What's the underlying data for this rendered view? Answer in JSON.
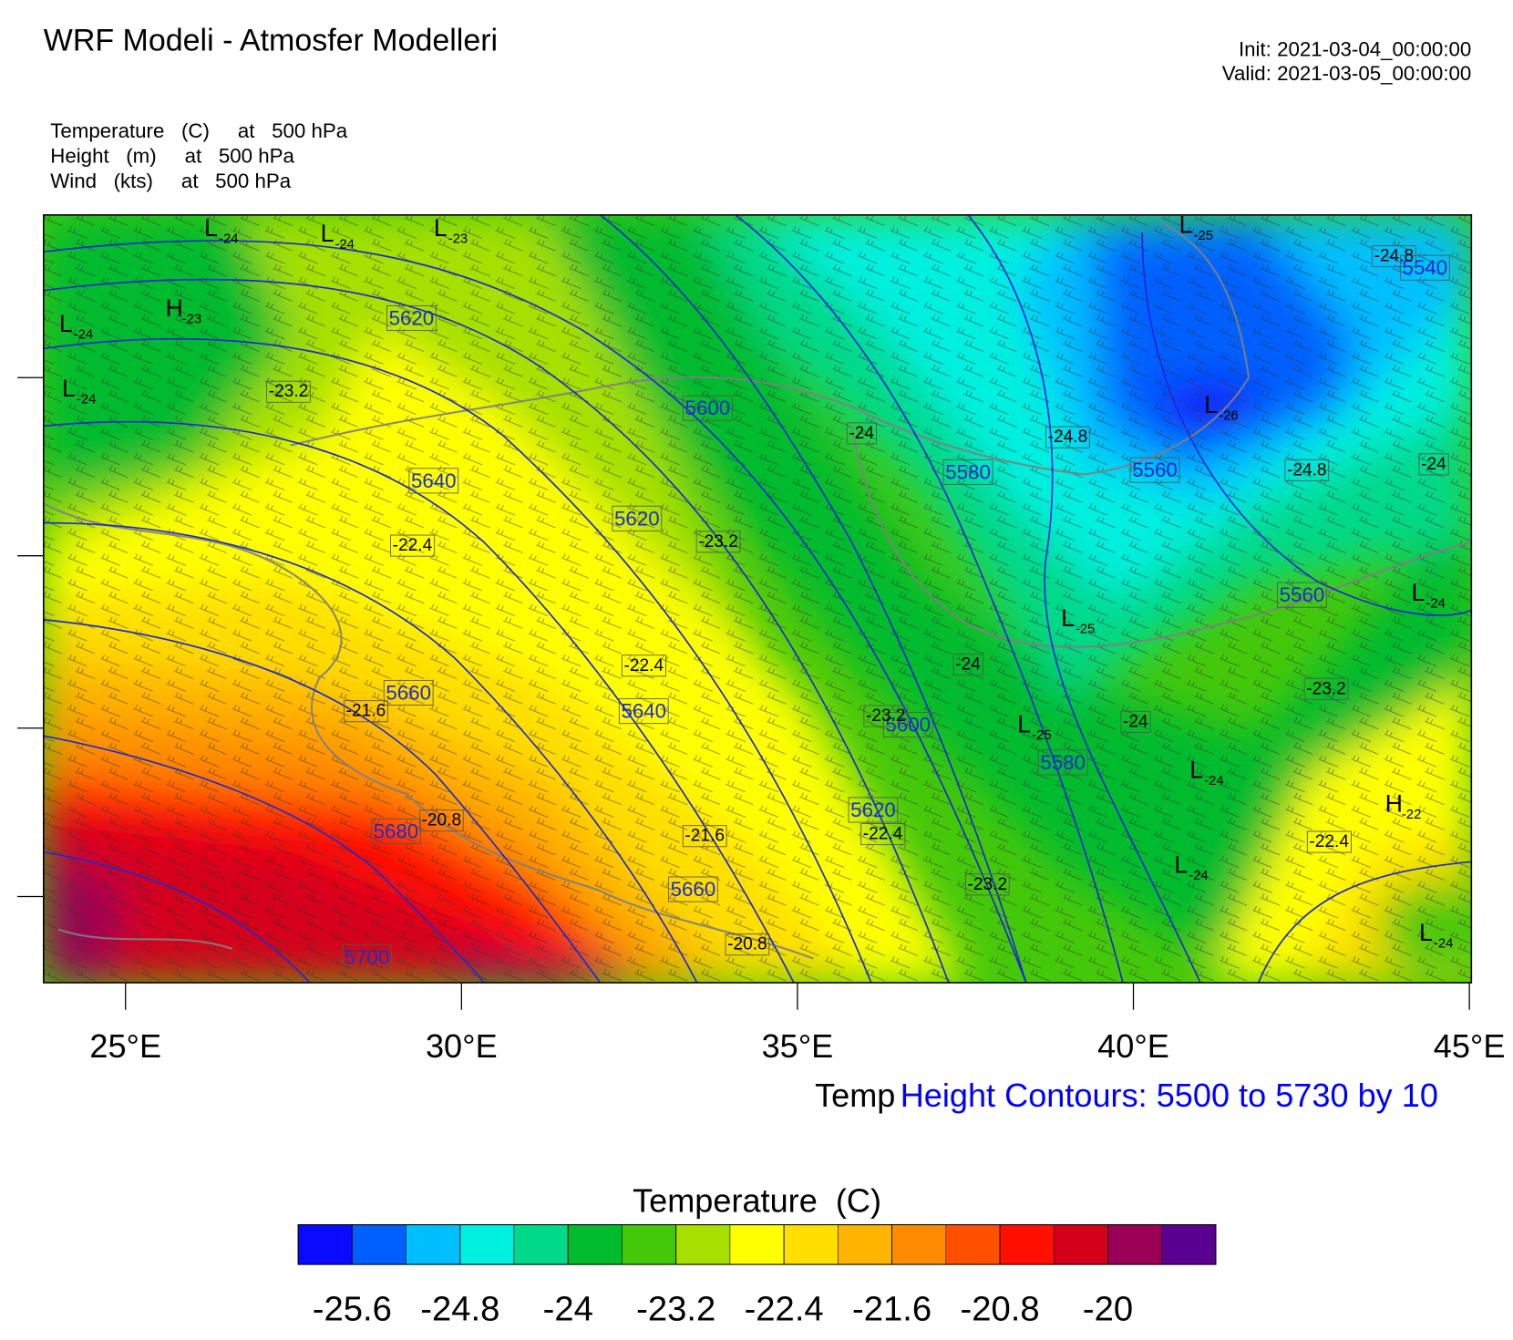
{
  "header": {
    "title": "WRF Modeli - Atmosfer Modelleri",
    "init": "Init: 2021-03-04_00:00:00",
    "valid": "Valid: 2021-03-05_00:00:00"
  },
  "fields": [
    "Temperature   (C)     at   500 hPa",
    "Height   (m)     at   500 hPa",
    "Wind   (kts)     at   500 hPa"
  ],
  "map": {
    "xlim": [
      23.78,
      45.03
    ],
    "xticks": [
      {
        "value": 25,
        "label": "25°E"
      },
      {
        "value": 30,
        "label": "30°E"
      },
      {
        "value": 35,
        "label": "35°E"
      },
      {
        "value": 40,
        "label": "40°E"
      },
      {
        "value": 45,
        "label": "45°E"
      }
    ],
    "height_labels": [
      "5620",
      "5600",
      "5640",
      "5620",
      "5580",
      "5560",
      "5540",
      "5560",
      "5660",
      "5640",
      "5600",
      "5580",
      "5620",
      "5680",
      "5660",
      "5700"
    ],
    "temp_labels": [
      "-23.2",
      "-24",
      "-24.8",
      "-24.8",
      "-24.8",
      "-24",
      "-22.4",
      "-23.2",
      "-22.4",
      "-24",
      "-23.2",
      "-24",
      "-23.2",
      "-21.6",
      "-20.8",
      "-21.6",
      "-22.4",
      "-23.2",
      "-22.4",
      "-20.8"
    ],
    "centers": [
      {
        "symbol": "L",
        "value": "-24"
      },
      {
        "symbol": "L",
        "value": "-24"
      },
      {
        "symbol": "L",
        "value": "-23"
      },
      {
        "symbol": "L",
        "value": "-25"
      },
      {
        "symbol": "L",
        "value": "-24"
      },
      {
        "symbol": "H",
        "value": "-23"
      },
      {
        "symbol": "L",
        "value": "-24"
      },
      {
        "symbol": "L",
        "value": "-26"
      },
      {
        "symbol": "L",
        "value": "-25"
      },
      {
        "symbol": "L",
        "value": "-24"
      },
      {
        "symbol": "L",
        "value": "-25"
      },
      {
        "symbol": "L",
        "value": "-24"
      },
      {
        "symbol": "H",
        "value": "-22"
      },
      {
        "symbol": "L",
        "value": "-24"
      },
      {
        "symbol": "L",
        "value": "-24"
      }
    ]
  },
  "footer": {
    "temp": "Temp",
    "height": "Height Contours: 5500 to 5730 by 10"
  },
  "colorbar": {
    "title": "Temperature  (C)",
    "range": [
      -26,
      -19.2
    ],
    "colors": [
      "#0a0aff",
      "#0060ff",
      "#00bfff",
      "#00f0e0",
      "#00d98a",
      "#00bb2e",
      "#44c80a",
      "#a6e000",
      "#ffff00",
      "#ffde00",
      "#ffb400",
      "#ff8c00",
      "#ff5000",
      "#ff1000",
      "#d4001a",
      "#9a0055",
      "#5a0090"
    ],
    "ticks": [
      -25.6,
      -24.8,
      -24,
      -23.2,
      -22.4,
      -21.6,
      -20.8,
      -20
    ]
  }
}
